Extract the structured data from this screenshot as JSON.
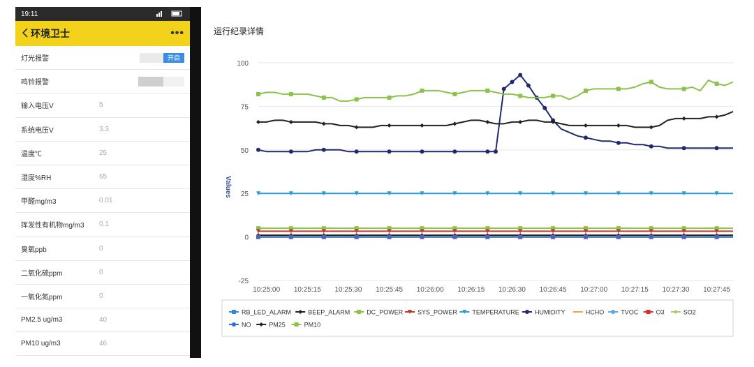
{
  "status_bar": {
    "time": "19:11",
    "icons": "wifi-signal-battery"
  },
  "app": {
    "back_icon": "chevron-left-icon",
    "title": "环境卫士",
    "more_label": "•••"
  },
  "rows": [
    {
      "label": "灯光报警",
      "value": "",
      "toggle_on_label": "开启"
    },
    {
      "label": "鸣铃报警",
      "value": ""
    },
    {
      "label": "输入电压V",
      "value": "5"
    },
    {
      "label": "系统电压V",
      "value": "3.3"
    },
    {
      "label": "温度℃",
      "value": "25"
    },
    {
      "label": "湿度%RH",
      "value": "65"
    },
    {
      "label": "甲醛mg/m3",
      "value": "0.01"
    },
    {
      "label": "挥发性有机物mg/m3",
      "value": "0.1"
    },
    {
      "label": "臭氧ppb",
      "value": "0"
    },
    {
      "label": "二氧化硫ppm",
      "value": "0"
    },
    {
      "label": "一氧化氮ppm",
      "value": "0"
    },
    {
      "label": "PM2.5 ug/m3",
      "value": "40"
    },
    {
      "label": "PM10 ug/m3",
      "value": "46"
    }
  ],
  "panel": {
    "title": "运行纪录详情"
  },
  "chart_data": {
    "type": "line",
    "title": "运行纪录详情",
    "ylabel": "Values",
    "ylim": [
      -25,
      100
    ],
    "yticks": [
      -25,
      0,
      25,
      50,
      75,
      100
    ],
    "xticks": [
      "10:25:00",
      "10:25:15",
      "10:25:30",
      "10:25:45",
      "10:26:00",
      "10:26:15",
      "10:26:30",
      "10:26:45",
      "10:27:00",
      "10:27:15",
      "10:27:30",
      "10:27:45"
    ],
    "x": [
      "10:24:57",
      "10:25:00",
      "10:25:03",
      "10:25:06",
      "10:25:09",
      "10:25:12",
      "10:25:15",
      "10:25:18",
      "10:25:21",
      "10:25:24",
      "10:25:27",
      "10:25:30",
      "10:25:33",
      "10:25:36",
      "10:25:39",
      "10:25:42",
      "10:25:45",
      "10:25:48",
      "10:25:51",
      "10:25:54",
      "10:25:57",
      "10:26:00",
      "10:26:03",
      "10:26:06",
      "10:26:09",
      "10:26:12",
      "10:26:15",
      "10:26:18",
      "10:26:21",
      "10:26:24",
      "10:26:27",
      "10:26:30",
      "10:26:33",
      "10:26:36",
      "10:26:39",
      "10:26:42",
      "10:26:45",
      "10:26:48",
      "10:26:51",
      "10:26:54",
      "10:26:57",
      "10:27:00",
      "10:27:03",
      "10:27:06",
      "10:27:09",
      "10:27:12",
      "10:27:15",
      "10:27:18",
      "10:27:21",
      "10:27:24",
      "10:27:27",
      "10:27:30",
      "10:27:33",
      "10:27:36",
      "10:27:39",
      "10:27:42",
      "10:27:45",
      "10:27:48",
      "10:27:51"
    ],
    "sample_every": 4,
    "series": [
      {
        "name": "RB_LED_ALARM",
        "color": "#3a86d6",
        "marker": "square",
        "values": [
          0,
          0,
          0,
          0,
          0,
          0,
          0,
          0,
          0,
          0,
          0,
          0,
          0,
          0,
          0,
          0,
          0,
          0,
          0,
          0,
          0,
          0,
          0,
          0,
          0,
          0,
          0,
          0,
          0,
          0,
          0,
          0,
          0,
          0,
          0,
          0,
          0,
          0,
          0,
          0,
          0,
          0,
          0,
          0,
          0,
          0,
          0,
          0,
          0,
          0,
          0,
          0,
          0,
          0,
          0,
          0,
          0,
          0,
          0
        ]
      },
      {
        "name": "BEEP_ALARM",
        "color": "#222222",
        "marker": "diamond",
        "values": [
          1,
          1,
          1,
          1,
          1,
          1,
          1,
          1,
          1,
          1,
          1,
          1,
          1,
          1,
          1,
          1,
          1,
          1,
          1,
          1,
          1,
          1,
          1,
          1,
          1,
          1,
          1,
          1,
          1,
          1,
          1,
          1,
          1,
          1,
          1,
          1,
          1,
          1,
          1,
          1,
          1,
          1,
          1,
          1,
          1,
          1,
          1,
          1,
          1,
          1,
          1,
          1,
          1,
          1,
          1,
          1,
          1,
          1,
          1
        ]
      },
      {
        "name": "DC_POWER",
        "color": "#8bc34a",
        "marker": "square",
        "values": [
          5,
          5,
          5,
          5,
          5,
          5,
          5,
          5,
          5,
          5,
          5,
          5,
          5,
          5,
          5,
          5,
          5,
          5,
          5,
          5,
          5,
          5,
          5,
          5,
          5,
          5,
          5,
          5,
          5,
          5,
          5,
          5,
          5,
          5,
          5,
          5,
          5,
          5,
          5,
          5,
          5,
          5,
          5,
          5,
          5,
          5,
          5,
          5,
          5,
          5,
          5,
          5,
          5,
          5,
          5,
          5,
          5,
          5,
          5
        ]
      },
      {
        "name": "SYS_POWER",
        "color": "#c0392b",
        "marker": "triangle",
        "values": [
          3.3,
          3.3,
          3.3,
          3.3,
          3.3,
          3.3,
          3.3,
          3.3,
          3.3,
          3.3,
          3.3,
          3.3,
          3.3,
          3.3,
          3.3,
          3.3,
          3.3,
          3.3,
          3.3,
          3.3,
          3.3,
          3.3,
          3.3,
          3.3,
          3.3,
          3.3,
          3.3,
          3.3,
          3.3,
          3.3,
          3.3,
          3.3,
          3.3,
          3.3,
          3.3,
          3.3,
          3.3,
          3.3,
          3.3,
          3.3,
          3.3,
          3.3,
          3.3,
          3.3,
          3.3,
          3.3,
          3.3,
          3.3,
          3.3,
          3.3,
          3.3,
          3.3,
          3.3,
          3.3,
          3.3,
          3.3,
          3.3,
          3.3,
          3.3
        ]
      },
      {
        "name": "TEMPERATURE",
        "color": "#2f9bd6",
        "marker": "triangle",
        "values": [
          25,
          25,
          25,
          25,
          25,
          25,
          25,
          25,
          25,
          25,
          25,
          25,
          25,
          25,
          25,
          25,
          25,
          25,
          25,
          25,
          25,
          25,
          25,
          25,
          25,
          25,
          25,
          25,
          25,
          25,
          25,
          25,
          25,
          25,
          25,
          25,
          25,
          25,
          25,
          25,
          25,
          25,
          25,
          25,
          25,
          25,
          25,
          25,
          25,
          25,
          25,
          25,
          25,
          25,
          25,
          25,
          25,
          25,
          25
        ]
      },
      {
        "name": "HUMIDITY",
        "color": "#1f2a6d",
        "marker": "circle",
        "values": [
          50,
          49,
          49,
          49,
          49,
          49,
          49,
          50,
          50,
          50,
          50,
          49,
          49,
          49,
          49,
          49,
          49,
          49,
          49,
          49,
          49,
          49,
          49,
          49,
          49,
          49,
          49,
          49,
          49,
          49,
          85,
          89,
          93,
          87,
          80,
          74,
          67,
          62,
          60,
          58,
          57,
          56,
          55,
          55,
          54,
          54,
          53,
          53,
          52,
          52,
          51,
          51,
          51,
          51,
          51,
          51,
          51,
          51,
          51
        ]
      },
      {
        "name": "HCHO",
        "color": "#f0a050",
        "marker": "none",
        "values": [
          0,
          0,
          0,
          0,
          0,
          0,
          0,
          0,
          0,
          0,
          0,
          0,
          0,
          0,
          0,
          0,
          0,
          0,
          0,
          0,
          0,
          0,
          0,
          0,
          0,
          0,
          0,
          0,
          0,
          0,
          0,
          0,
          0,
          0,
          0,
          0,
          0,
          0,
          0,
          0,
          0,
          0,
          0,
          0,
          0,
          0,
          0,
          0,
          0,
          0,
          0,
          0,
          0,
          0,
          0,
          0,
          0,
          0,
          0
        ]
      },
      {
        "name": "TVOC",
        "color": "#5aa9e6",
        "marker": "circle",
        "values": [
          0.1,
          0.1,
          0.1,
          0.1,
          0.1,
          0.1,
          0.1,
          0.1,
          0.1,
          0.1,
          0.1,
          0.1,
          0.1,
          0.1,
          0.1,
          0.1,
          0.1,
          0.1,
          0.1,
          0.1,
          0.1,
          0.1,
          0.1,
          0.1,
          0.1,
          0.1,
          0.1,
          0.1,
          0.1,
          0.1,
          0.1,
          0.1,
          0.1,
          0.1,
          0.1,
          0.1,
          0.1,
          0.1,
          0.1,
          0.1,
          0.1,
          0.1,
          0.1,
          0.1,
          0.1,
          0.1,
          0.1,
          0.1,
          0.1,
          0.1,
          0.1,
          0.1,
          0.1,
          0.1,
          0.1,
          0.1,
          0.1,
          0.1,
          0.1
        ]
      },
      {
        "name": "O3",
        "color": "#e02d2d",
        "marker": "square",
        "values": [
          0,
          0,
          0,
          0,
          0,
          0,
          0,
          0,
          0,
          0,
          0,
          0,
          0,
          0,
          0,
          0,
          0,
          0,
          0,
          0,
          0,
          0,
          0,
          0,
          0,
          0,
          0,
          0,
          0,
          0,
          0,
          0,
          0,
          0,
          0,
          0,
          0,
          0,
          0,
          0,
          0,
          0,
          0,
          0,
          0,
          0,
          0,
          0,
          0,
          0,
          0,
          0,
          0,
          0,
          0,
          0,
          0,
          0,
          0
        ]
      },
      {
        "name": "SO2",
        "color": "#a5cf6b",
        "marker": "diamond",
        "values": [
          0,
          0,
          0,
          0,
          0,
          0,
          0,
          0,
          0,
          0,
          0,
          0,
          0,
          0,
          0,
          0,
          0,
          0,
          0,
          0,
          0,
          0,
          0,
          0,
          0,
          0,
          0,
          0,
          0,
          0,
          0,
          0,
          0,
          0,
          0,
          0,
          0,
          0,
          0,
          0,
          0,
          0,
          0,
          0,
          0,
          0,
          0,
          0,
          0,
          0,
          0,
          0,
          0,
          0,
          0,
          0,
          0,
          0,
          0
        ]
      },
      {
        "name": "NO",
        "color": "#2a6fd1",
        "marker": "circle",
        "values": [
          0,
          0,
          0,
          0,
          0,
          0,
          0,
          0,
          0,
          0,
          0,
          0,
          0,
          0,
          0,
          0,
          0,
          0,
          0,
          0,
          0,
          0,
          0,
          0,
          0,
          0,
          0,
          0,
          0,
          0,
          0,
          0,
          0,
          0,
          0,
          0,
          0,
          0,
          0,
          0,
          0,
          0,
          0,
          0,
          0,
          0,
          0,
          0,
          0,
          0,
          0,
          0,
          0,
          0,
          0,
          0,
          0,
          0,
          0
        ]
      },
      {
        "name": "PM25",
        "color": "#222222",
        "marker": "diamond",
        "values": [
          66,
          66,
          67,
          67,
          66,
          66,
          66,
          66,
          65,
          65,
          64,
          64,
          63,
          63,
          63,
          64,
          64,
          64,
          64,
          64,
          64,
          64,
          64,
          64,
          65,
          66,
          67,
          67,
          66,
          65,
          65,
          66,
          66,
          67,
          67,
          66,
          66,
          65,
          64,
          64,
          64,
          64,
          64,
          64,
          64,
          64,
          63,
          63,
          63,
          64,
          67,
          68,
          68,
          68,
          68,
          69,
          69,
          70,
          72
        ]
      },
      {
        "name": "PM10",
        "color": "#8bc34a",
        "marker": "square",
        "values": [
          82,
          83,
          83,
          82,
          82,
          82,
          82,
          81,
          80,
          80,
          78,
          78,
          79,
          80,
          80,
          80,
          80,
          81,
          81,
          82,
          84,
          84,
          84,
          83,
          82,
          83,
          84,
          84,
          84,
          83,
          82,
          82,
          81,
          80,
          80,
          80,
          81,
          81,
          79,
          81,
          84,
          85,
          85,
          85,
          85,
          85,
          86,
          88,
          89,
          86,
          85,
          85,
          85,
          86,
          84,
          90,
          88,
          87,
          89
        ]
      }
    ],
    "legend_position": "bottom"
  }
}
